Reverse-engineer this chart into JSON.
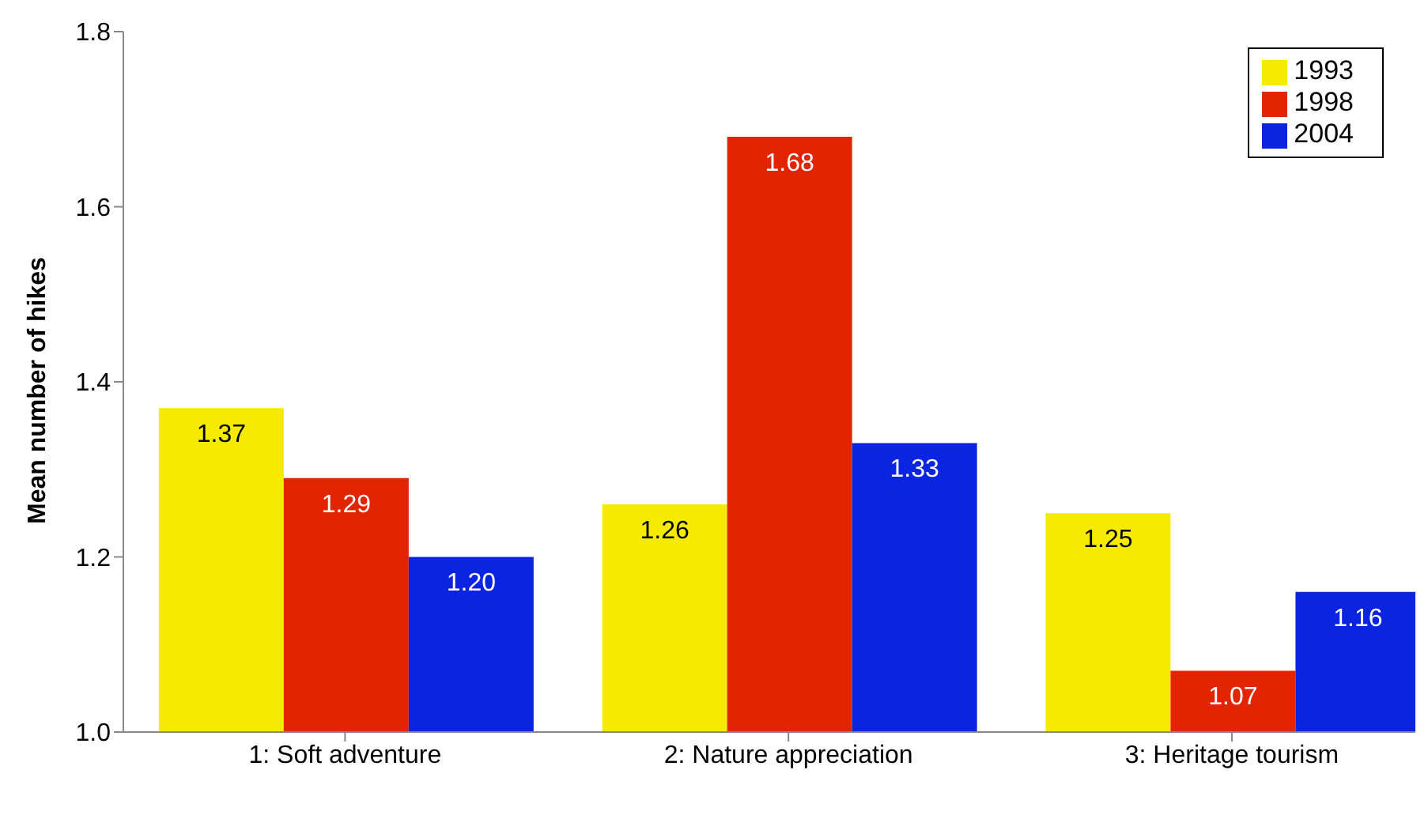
{
  "chart_data": {
    "type": "bar",
    "ylabel": "Mean number of hikes",
    "categories": [
      "1: Soft adventure",
      "2: Nature appreciation",
      "3: Heritage tourism"
    ],
    "series": [
      {
        "name": "1993",
        "color": "#f5ea00",
        "values": [
          1.37,
          1.26,
          1.25
        ],
        "value_labels": [
          "1.37",
          "1.26",
          "1.25"
        ]
      },
      {
        "name": "1998",
        "color": "#e32400",
        "values": [
          1.29,
          1.68,
          1.07
        ],
        "value_labels": [
          "1.29",
          "1.68",
          "1.07"
        ]
      },
      {
        "name": "2004",
        "color": "#0a24e0",
        "values": [
          1.2,
          1.33,
          1.16
        ],
        "value_labels": [
          "1.20",
          "1.33",
          "1.16"
        ]
      }
    ],
    "ylim": [
      1.0,
      1.8
    ],
    "yticks": [
      {
        "value": 1.0,
        "label": "1.0"
      },
      {
        "value": 1.2,
        "label": "1.2"
      },
      {
        "value": 1.4,
        "label": "1.4"
      },
      {
        "value": 1.6,
        "label": "1.6"
      },
      {
        "value": 1.8,
        "label": "1.8"
      }
    ],
    "legend": "top right",
    "grid": false
  }
}
